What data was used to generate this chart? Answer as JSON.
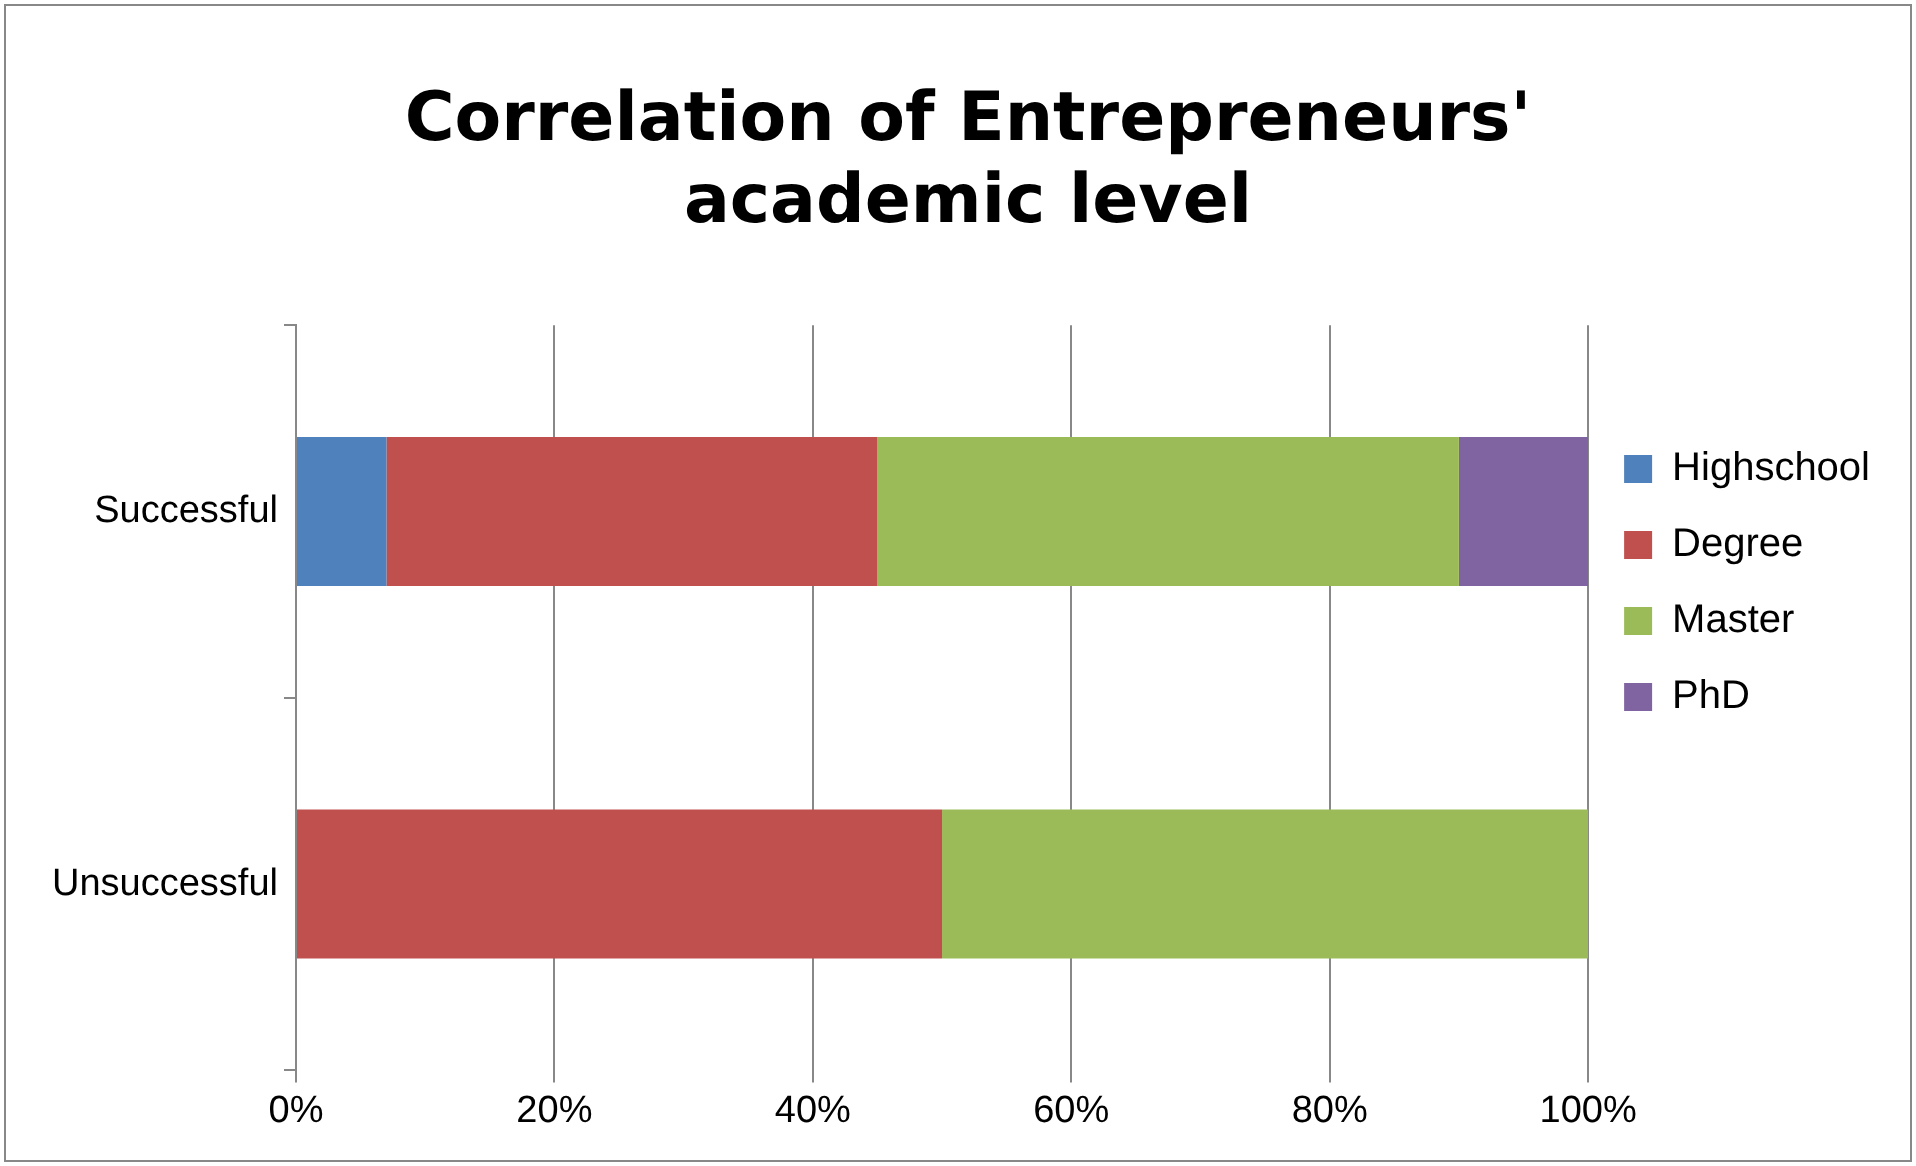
{
  "chart_data": {
    "type": "bar",
    "title": [
      "Correlation of Entrepreneurs'",
      "academic level"
    ],
    "orientation": "horizontal",
    "stacked": true,
    "categories": [
      "Successful",
      "Unsuccessful"
    ],
    "series": [
      {
        "name": "Highschool",
        "color": "#4f81bd",
        "values": [
          7,
          0
        ]
      },
      {
        "name": "Degree",
        "color": "#c0504d",
        "values": [
          38,
          50
        ]
      },
      {
        "name": "Master",
        "color": "#9bbb59",
        "values": [
          45,
          50
        ]
      },
      {
        "name": "PhD",
        "color": "#8064a2",
        "values": [
          10,
          0
        ]
      }
    ],
    "xlim": [
      0,
      100
    ],
    "xticks": [
      {
        "value": 0,
        "label": "0%"
      },
      {
        "value": 20,
        "label": "20%"
      },
      {
        "value": 40,
        "label": "40%"
      },
      {
        "value": 60,
        "label": "60%"
      },
      {
        "value": 80,
        "label": "80%"
      },
      {
        "value": 100,
        "label": "100%"
      }
    ],
    "grid": "x",
    "legend": "right"
  }
}
